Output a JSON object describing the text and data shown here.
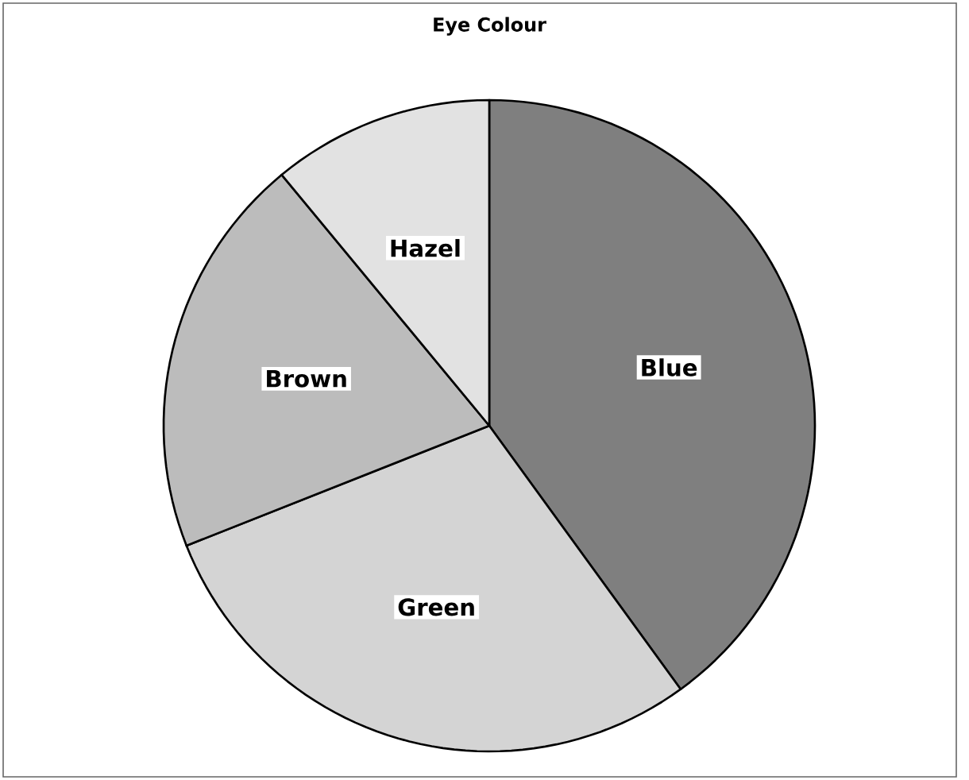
{
  "chart_data": {
    "type": "pie",
    "title": "Eye Colour",
    "categories": [
      "Blue",
      "Green",
      "Brown",
      "Hazel"
    ],
    "values": [
      40,
      29,
      20,
      11
    ],
    "colors": [
      "#7f7f7f",
      "#d4d4d4",
      "#bcbcbc",
      "#e2e2e2"
    ]
  }
}
